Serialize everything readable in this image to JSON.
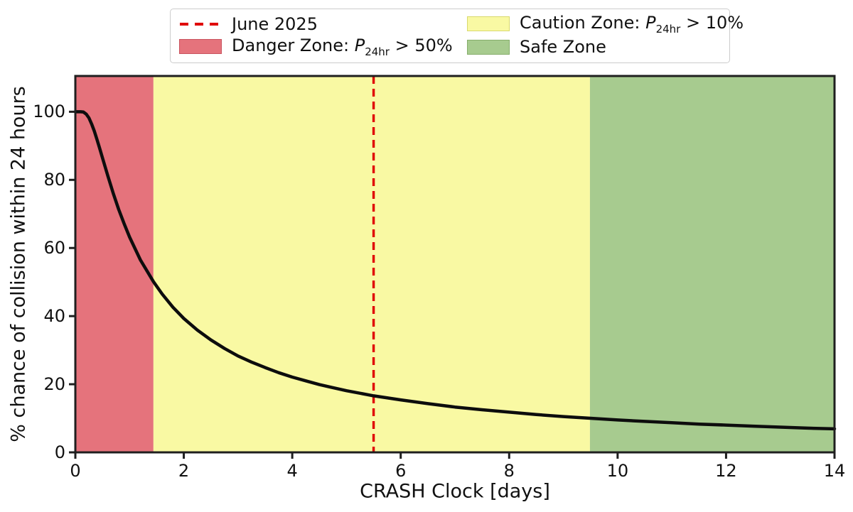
{
  "colors": {
    "danger_fill": "#e5737c",
    "danger_edge": "#c9545f",
    "caution_fill": "#f9f9a3",
    "caution_edge": "#d9d96e",
    "safe_fill": "#a7cb8f",
    "safe_edge": "#86ae6c",
    "vline": "#e00000",
    "curve": "#0d0d0d",
    "spine": "#1f1f1f",
    "text": "#111111",
    "legend_border": "#cccccc"
  },
  "legend": {
    "items": [
      {
        "label": "June 2025"
      },
      {
        "prefix": "Danger Zone: ",
        "pvar": "P",
        "sub": "24hr",
        "suffix": " > 50%"
      },
      {
        "prefix": "Caution Zone: ",
        "pvar": "P",
        "sub": "24hr",
        "suffix": " > 10%"
      },
      {
        "label": "Safe Zone"
      }
    ]
  },
  "chart_data": {
    "type": "line",
    "title": "",
    "xlabel": "CRASH Clock [days]",
    "ylabel": "% chance of collision within 24 hours",
    "xlim": [
      0,
      14
    ],
    "ylim": [
      0,
      110.5
    ],
    "xticks": [
      0,
      2,
      4,
      6,
      8,
      10,
      12,
      14
    ],
    "yticks": [
      0,
      20,
      40,
      60,
      80,
      100
    ],
    "grid": false,
    "legend_position": "top",
    "series": [
      {
        "name": "collision_probability",
        "color": "#0d0d0d",
        "x": [
          0,
          0.05,
          0.1,
          0.15,
          0.2,
          0.25,
          0.3,
          0.35,
          0.4,
          0.45,
          0.5,
          0.6,
          0.7,
          0.8,
          0.9,
          1.0,
          1.2,
          1.44,
          1.6,
          1.8,
          2.0,
          2.25,
          2.5,
          2.75,
          3.0,
          3.25,
          3.5,
          3.75,
          4.0,
          4.25,
          4.5,
          4.75,
          5.0,
          5.5,
          6.0,
          6.5,
          7.0,
          7.5,
          8.0,
          8.5,
          9.0,
          9.5,
          10.0,
          10.5,
          11.0,
          11.5,
          12.0,
          12.5,
          13.0,
          13.5,
          14.0
        ],
        "y": [
          100,
          100,
          100,
          99.9,
          99.3,
          98.2,
          96.4,
          94.3,
          91.8,
          89.2,
          86.5,
          81.1,
          76.0,
          71.3,
          67.1,
          63.2,
          56.5,
          50.1,
          46.5,
          42.6,
          39.3,
          35.9,
          33.0,
          30.5,
          28.3,
          26.5,
          24.9,
          23.4,
          22.1,
          21.0,
          19.9,
          19.0,
          18.1,
          16.6,
          15.4,
          14.3,
          13.3,
          12.5,
          11.8,
          11.1,
          10.5,
          10.0,
          9.5,
          9.1,
          8.7,
          8.3,
          8.0,
          7.7,
          7.4,
          7.1,
          6.9
        ]
      }
    ],
    "zones": [
      {
        "name": "Danger Zone",
        "threshold": "P24hr > 50%",
        "xmin": 0,
        "xmax": 1.44,
        "color": "#e5737c"
      },
      {
        "name": "Caution Zone",
        "threshold": "P24hr > 10%",
        "xmin": 1.44,
        "xmax": 9.49,
        "color": "#f9f9a3"
      },
      {
        "name": "Safe Zone",
        "xmin": 9.49,
        "xmax": 14,
        "color": "#a7cb8f"
      }
    ],
    "vline": {
      "x": 5.5,
      "label": "June 2025",
      "color": "#e00000",
      "style": "dashed"
    }
  }
}
